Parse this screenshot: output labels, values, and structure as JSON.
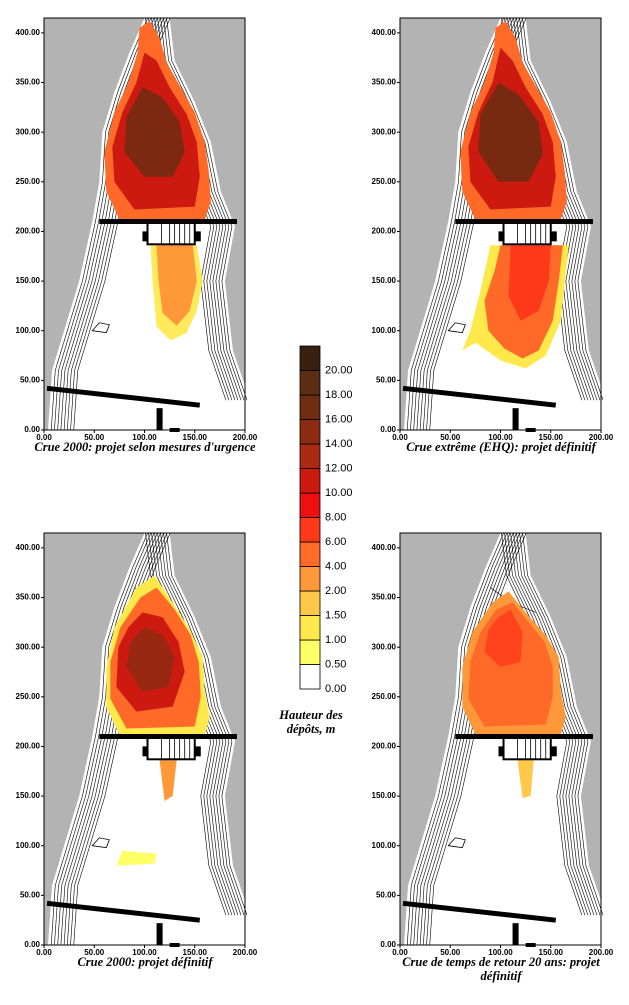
{
  "chart_data": [
    {
      "type": "map",
      "caption": "Crue 2000: projet selon mesures d'urgence",
      "xlim": [
        0,
        200
      ],
      "ylim": [
        0,
        415
      ],
      "xticks": [
        {
          "value": 0,
          "label": "0.00"
        },
        {
          "value": 50,
          "label": "50.00"
        },
        {
          "value": 100,
          "label": "100.00"
        },
        {
          "value": 150,
          "label": "150.00"
        },
        {
          "value": 200,
          "label": "200.00"
        }
      ],
      "yticks": [
        {
          "value": 0,
          "label": "0.00"
        },
        {
          "value": 50,
          "label": "50.00"
        },
        {
          "value": 100,
          "label": "100.00"
        },
        {
          "value": 150,
          "label": "150.00"
        },
        {
          "value": 200,
          "label": "200.00"
        },
        {
          "value": 250,
          "label": "250.00"
        },
        {
          "value": 300,
          "label": "300.00"
        },
        {
          "value": 350,
          "label": "350.00"
        },
        {
          "value": 400,
          "label": "400.00"
        }
      ]
    },
    {
      "type": "map",
      "caption": "Crue extrême (EHQ): projet définitif",
      "xlim": [
        0,
        200
      ],
      "ylim": [
        0,
        415
      ],
      "xticks": [
        {
          "value": 0,
          "label": "0.00"
        },
        {
          "value": 50,
          "label": "50.00"
        },
        {
          "value": 100,
          "label": "100.00"
        },
        {
          "value": 150,
          "label": "150.00"
        },
        {
          "value": 200,
          "label": "200.00"
        }
      ],
      "yticks": [
        {
          "value": 0,
          "label": "0.00"
        },
        {
          "value": 50,
          "label": "50.00"
        },
        {
          "value": 100,
          "label": "100.00"
        },
        {
          "value": 150,
          "label": "150.00"
        },
        {
          "value": 200,
          "label": "200.00"
        },
        {
          "value": 250,
          "label": "250.00"
        },
        {
          "value": 300,
          "label": "300.00"
        },
        {
          "value": 350,
          "label": "350.00"
        },
        {
          "value": 400,
          "label": "400.00"
        }
      ]
    },
    {
      "type": "map",
      "caption": "Crue 2000: projet définitif",
      "xlim": [
        0,
        200
      ],
      "ylim": [
        0,
        415
      ],
      "xticks": [
        {
          "value": 0,
          "label": "0.00"
        },
        {
          "value": 50,
          "label": "50.00"
        },
        {
          "value": 100,
          "label": "100.00"
        },
        {
          "value": 150,
          "label": "150.00"
        },
        {
          "value": 200,
          "label": "200.00"
        }
      ],
      "yticks": [
        {
          "value": 0,
          "label": "0.00"
        },
        {
          "value": 50,
          "label": "50.00"
        },
        {
          "value": 100,
          "label": "100.00"
        },
        {
          "value": 150,
          "label": "150.00"
        },
        {
          "value": 200,
          "label": "200.00"
        },
        {
          "value": 250,
          "label": "250.00"
        },
        {
          "value": 300,
          "label": "300.00"
        },
        {
          "value": 350,
          "label": "350.00"
        },
        {
          "value": 400,
          "label": "400.00"
        }
      ]
    },
    {
      "type": "map",
      "caption": "Crue de temps de retour 20 ans: projet définitif",
      "xlim": [
        0,
        200
      ],
      "ylim": [
        0,
        415
      ],
      "xticks": [
        {
          "value": 0,
          "label": "0.00"
        },
        {
          "value": 50,
          "label": "50.00"
        },
        {
          "value": 100,
          "label": "100.00"
        },
        {
          "value": 150,
          "label": "150.00"
        },
        {
          "value": 200,
          "label": "200.00"
        }
      ],
      "yticks": [
        {
          "value": 0,
          "label": "0.00"
        },
        {
          "value": 50,
          "label": "50.00"
        },
        {
          "value": 100,
          "label": "100.00"
        },
        {
          "value": 150,
          "label": "150.00"
        },
        {
          "value": 200,
          "label": "200.00"
        },
        {
          "value": 250,
          "label": "250.00"
        },
        {
          "value": 300,
          "label": "300.00"
        },
        {
          "value": 350,
          "label": "350.00"
        },
        {
          "value": 400,
          "label": "400.00"
        }
      ]
    },
    {
      "type": "colorbar",
      "title": "Hauteur des dépôts, m",
      "levels": [
        {
          "value": 0,
          "label": "0.00"
        },
        {
          "value": 0.5,
          "label": "0.50"
        },
        {
          "value": 1,
          "label": "1.00"
        },
        {
          "value": 1.5,
          "label": "1.50"
        },
        {
          "value": 2,
          "label": "2.00"
        },
        {
          "value": 4,
          "label": "4.00"
        },
        {
          "value": 6,
          "label": "6.00"
        },
        {
          "value": 8,
          "label": "8.00"
        },
        {
          "value": 10,
          "label": "10.00"
        },
        {
          "value": 12,
          "label": "12.00"
        },
        {
          "value": 14,
          "label": "14.00"
        },
        {
          "value": 16,
          "label": "16.00"
        },
        {
          "value": 18,
          "label": "18.00"
        },
        {
          "value": 20,
          "label": "20.00"
        }
      ],
      "colors": [
        "#ffffff",
        "#ffff66",
        "#ffe84a",
        "#ffc848",
        "#ff9838",
        "#ff6a28",
        "#ff3a1a",
        "#ee1010",
        "#cc1a10",
        "#aa2a14",
        "#8b2c12",
        "#6e2c10",
        "#5a2e12",
        "#3a2010"
      ]
    }
  ]
}
